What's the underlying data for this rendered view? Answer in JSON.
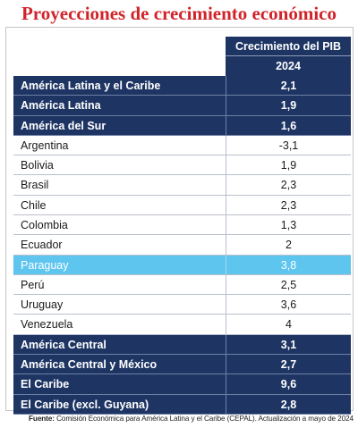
{
  "title": "Proyecciones de crecimiento económico",
  "header": {
    "col_label": "Crecimiento del PIB",
    "year": "2024"
  },
  "colors": {
    "title": "#d0242a",
    "region_row": "#1e3564",
    "highlight_row": "#5ec5ef"
  },
  "rows": [
    {
      "name": "América Latina y el Caribe",
      "value": "2,1",
      "kind": "region"
    },
    {
      "name": "América Latina",
      "value": "1,9",
      "kind": "region"
    },
    {
      "name": "América del Sur",
      "value": "1,6",
      "kind": "region"
    },
    {
      "name": "Argentina",
      "value": "-3,1",
      "kind": "country"
    },
    {
      "name": "Bolivia",
      "value": "1,9",
      "kind": "country"
    },
    {
      "name": "Brasil",
      "value": "2,3",
      "kind": "country"
    },
    {
      "name": "Chile",
      "value": "2,3",
      "kind": "country"
    },
    {
      "name": "Colombia",
      "value": "1,3",
      "kind": "country"
    },
    {
      "name": "Ecuador",
      "value": "2",
      "kind": "country"
    },
    {
      "name": "Paraguay",
      "value": "3,8",
      "kind": "highlight"
    },
    {
      "name": "Perú",
      "value": "2,5",
      "kind": "country"
    },
    {
      "name": "Uruguay",
      "value": "3,6",
      "kind": "country"
    },
    {
      "name": "Venezuela",
      "value": "4",
      "kind": "country"
    },
    {
      "name": "América Central",
      "value": "3,1",
      "kind": "region"
    },
    {
      "name": "América Central y México",
      "value": "2,7",
      "kind": "region"
    },
    {
      "name": "El Caribe",
      "value": "9,6",
      "kind": "region"
    },
    {
      "name": "El Caribe (excl. Guyana)",
      "value": "2,8",
      "kind": "region"
    }
  ],
  "source": {
    "label": "Fuente:",
    "text": "Comisión Económica para América Latina y el Caribe (CEPAL). Actualización a mayo de 2024"
  }
}
